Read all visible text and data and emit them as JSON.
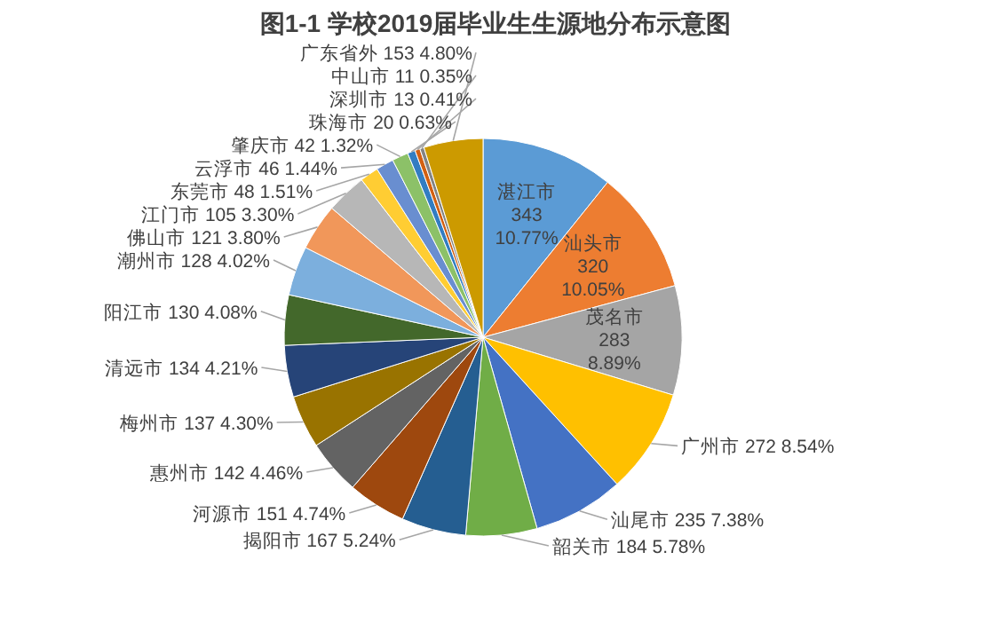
{
  "chart_data": {
    "type": "pie",
    "title": "图1-1 学校2019届毕业生生源地分布示意图",
    "categories": [
      "湛江市",
      "汕头市",
      "茂名市",
      "广州市",
      "汕尾市",
      "韶关市",
      "揭阳市",
      "河源市",
      "惠州市",
      "梅州市",
      "清远市",
      "阳江市",
      "潮州市",
      "佛山市",
      "江门市",
      "东莞市",
      "云浮市",
      "肇庆市",
      "珠海市",
      "深圳市",
      "中山市",
      "广东省外"
    ],
    "values": [
      343,
      320,
      283,
      272,
      235,
      184,
      167,
      151,
      142,
      137,
      134,
      130,
      128,
      121,
      105,
      48,
      46,
      42,
      20,
      13,
      11,
      153
    ],
    "value_labels": [
      "343\n10.77%",
      "320\n10.05%",
      "283\n8.89%",
      "272\n8.54%",
      "235\n7.38%",
      "184\n5.78%",
      "167\n5.24%",
      "151\n4.74%",
      "142\n4.46%",
      "137\n4.30%",
      "134\n4.21%",
      "130\n4.08%",
      "128\n4.02%",
      "121\n3.80%",
      "105\n3.30%",
      "48\n1.51%",
      "46\n1.44%",
      "42\n1.32%",
      "20\n0.63%",
      "13\n0.41%",
      "11\n0.35%",
      "153\n4.80%"
    ],
    "colors": [
      "#5b9bd5",
      "#ed7d31",
      "#a5a5a5",
      "#ffc000",
      "#4472c4",
      "#70ad47",
      "#255e91",
      "#9e480e",
      "#636363",
      "#997300",
      "#264478",
      "#43682b",
      "#7cafdd",
      "#f1975a",
      "#b7b7b7",
      "#ffcd33",
      "#698ed0",
      "#8cc168",
      "#327dc2",
      "#d26012",
      "#848484",
      "#cc9a00"
    ]
  }
}
